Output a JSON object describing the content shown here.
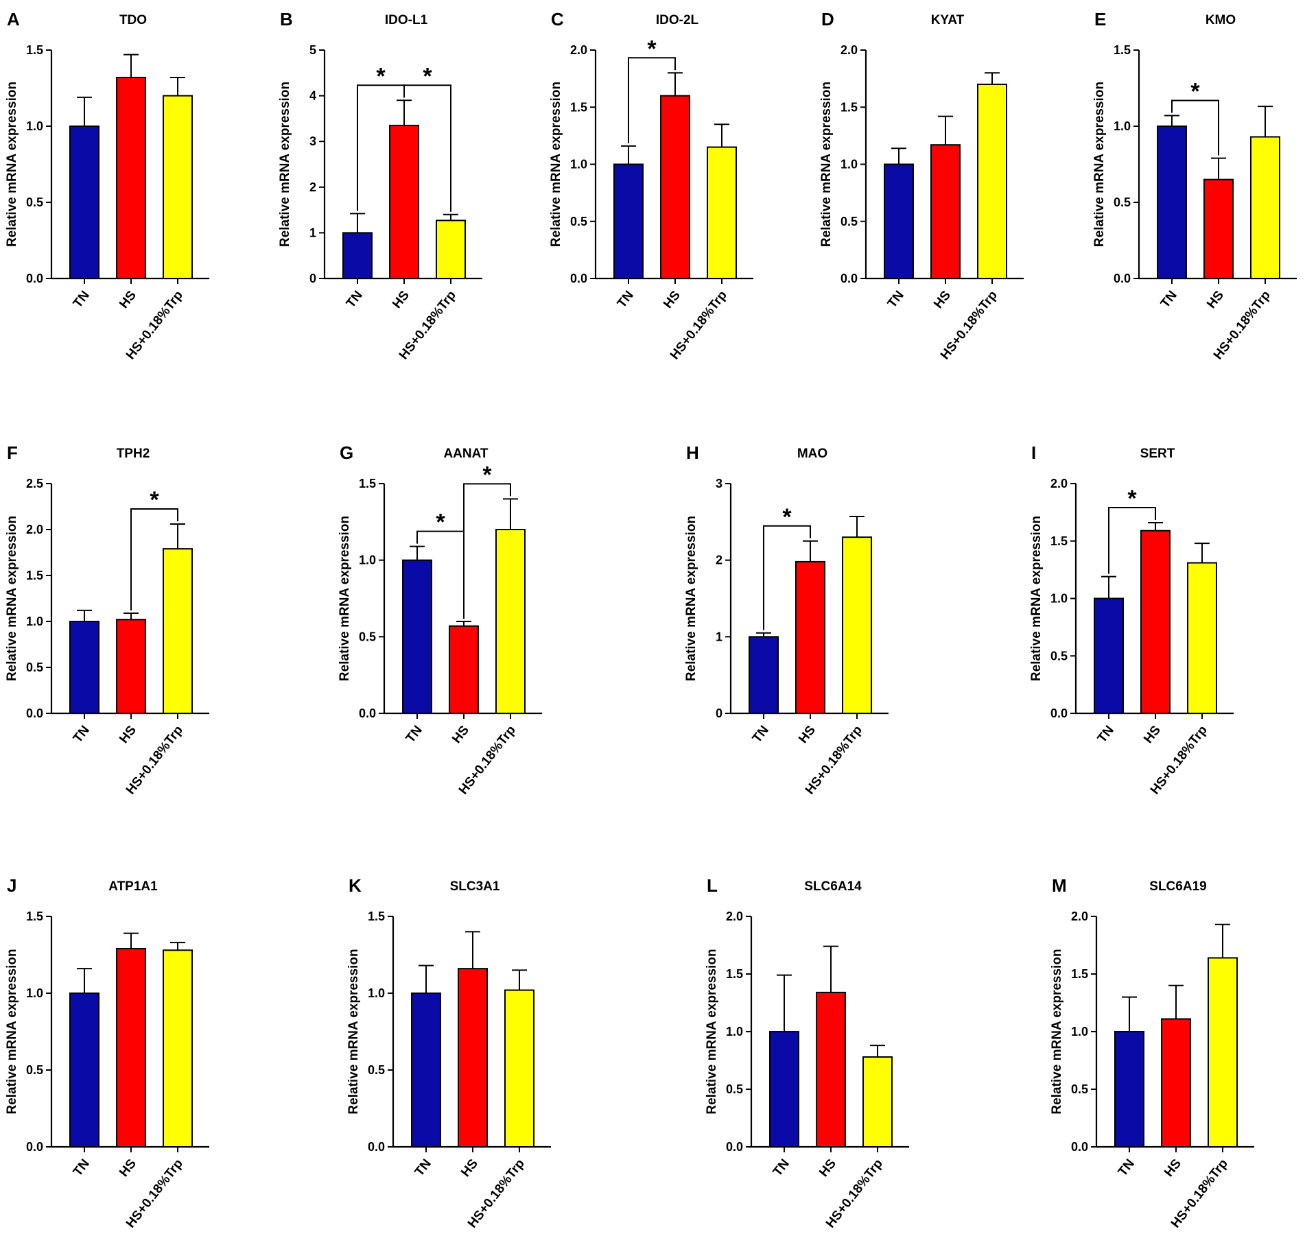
{
  "chart_data": [
    {
      "type": "bar",
      "panel": "A",
      "title": "TDO",
      "ylabel": "Relative mRNA expression",
      "categories": [
        "TN",
        "HS",
        "HS+0.18%Trp"
      ],
      "values": [
        1.0,
        1.32,
        1.2
      ],
      "errors": [
        0.19,
        0.15,
        0.12
      ],
      "colors": [
        "#0a0aa6",
        "#ff0000",
        "#ffff00"
      ],
      "ylim": [
        0,
        1.5
      ],
      "yticks": [
        "0.0",
        "0.5",
        "1.0",
        "1.5"
      ],
      "significance": []
    },
    {
      "type": "bar",
      "panel": "B",
      "title": "IDO-L1",
      "ylabel": "Relative mRNA expression",
      "categories": [
        "TN",
        "HS",
        "HS+0.18%Trp"
      ],
      "values": [
        1.0,
        3.35,
        1.27
      ],
      "errors": [
        0.42,
        0.55,
        0.13
      ],
      "colors": [
        "#0a0aa6",
        "#ff0000",
        "#ffff00"
      ],
      "ylim": [
        0,
        5
      ],
      "yticks": [
        "0",
        "1",
        "2",
        "3",
        "4",
        "5"
      ],
      "significance": [
        {
          "from": 0,
          "to": 1,
          "label": "*"
        },
        {
          "from": 1,
          "to": 2,
          "label": "*"
        }
      ]
    },
    {
      "type": "bar",
      "panel": "C",
      "title": "IDO-2L",
      "ylabel": "Relative mRNA expression",
      "categories": [
        "TN",
        "HS",
        "HS+0.18%Trp"
      ],
      "values": [
        1.0,
        1.6,
        1.15
      ],
      "errors": [
        0.16,
        0.2,
        0.2
      ],
      "colors": [
        "#0a0aa6",
        "#ff0000",
        "#ffff00"
      ],
      "ylim": [
        0,
        2.0
      ],
      "yticks": [
        "0.0",
        "0.5",
        "1.0",
        "1.5",
        "2.0"
      ],
      "significance": [
        {
          "from": 0,
          "to": 1,
          "label": "*"
        }
      ]
    },
    {
      "type": "bar",
      "panel": "D",
      "title": "KYAT",
      "ylabel": "Relative mRNA expression",
      "categories": [
        "TN",
        "HS",
        "HS+0.18%Trp"
      ],
      "values": [
        1.0,
        1.17,
        1.7
      ],
      "errors": [
        0.14,
        0.25,
        0.1
      ],
      "colors": [
        "#0a0aa6",
        "#ff0000",
        "#ffff00"
      ],
      "ylim": [
        0,
        2.0
      ],
      "yticks": [
        "0.0",
        "0.5",
        "1.0",
        "1.5",
        "2.0"
      ],
      "significance": []
    },
    {
      "type": "bar",
      "panel": "E",
      "title": "KMO",
      "ylabel": "Relative mRNA expression",
      "categories": [
        "TN",
        "HS",
        "HS+0.18%Trp"
      ],
      "values": [
        1.0,
        0.65,
        0.93
      ],
      "errors": [
        0.07,
        0.14,
        0.2
      ],
      "colors": [
        "#0a0aa6",
        "#ff0000",
        "#ffff00"
      ],
      "ylim": [
        0,
        1.5
      ],
      "yticks": [
        "0.0",
        "0.5",
        "1.0",
        "1.5"
      ],
      "significance": [
        {
          "from": 0,
          "to": 1,
          "label": "*"
        }
      ]
    },
    {
      "type": "bar",
      "panel": "F",
      "title": "TPH2",
      "ylabel": "Relative mRNA expression",
      "categories": [
        "TN",
        "HS",
        "HS+0.18%Trp"
      ],
      "values": [
        1.0,
        1.02,
        1.79
      ],
      "errors": [
        0.12,
        0.07,
        0.27
      ],
      "colors": [
        "#0a0aa6",
        "#ff0000",
        "#ffff00"
      ],
      "ylim": [
        0,
        2.5
      ],
      "yticks": [
        "0.0",
        "0.5",
        "1.0",
        "1.5",
        "2.0",
        "2.5"
      ],
      "significance": [
        {
          "from": 1,
          "to": 2,
          "label": "*"
        }
      ]
    },
    {
      "type": "bar",
      "panel": "G",
      "title": "AANAT",
      "ylabel": "Relative mRNA expression",
      "categories": [
        "TN",
        "HS",
        "HS+0.18%Trp"
      ],
      "values": [
        1.0,
        0.57,
        1.2
      ],
      "errors": [
        0.09,
        0.03,
        0.2
      ],
      "colors": [
        "#0a0aa6",
        "#ff0000",
        "#ffff00"
      ],
      "ylim": [
        0,
        1.5
      ],
      "yticks": [
        "0.0",
        "0.5",
        "1.0",
        "1.5"
      ],
      "significance": [
        {
          "from": 0,
          "to": 1,
          "label": "*"
        },
        {
          "from": 1,
          "to": 2,
          "label": "*"
        }
      ]
    },
    {
      "type": "bar",
      "panel": "H",
      "title": "MAO",
      "ylabel": "Relative mRNA expression",
      "categories": [
        "TN",
        "HS",
        "HS+0.18%Trp"
      ],
      "values": [
        1.0,
        1.98,
        2.3
      ],
      "errors": [
        0.05,
        0.27,
        0.27
      ],
      "colors": [
        "#0a0aa6",
        "#ff0000",
        "#ffff00"
      ],
      "ylim": [
        0,
        3
      ],
      "yticks": [
        "0",
        "1",
        "2",
        "3"
      ],
      "significance": [
        {
          "from": 0,
          "to": 1,
          "label": "*"
        }
      ]
    },
    {
      "type": "bar",
      "panel": "I",
      "title": "SERT",
      "ylabel": "Relative mRNA expression",
      "categories": [
        "TN",
        "HS",
        "HS+0.18%Trp"
      ],
      "values": [
        1.0,
        1.59,
        1.31
      ],
      "errors": [
        0.19,
        0.07,
        0.17
      ],
      "colors": [
        "#0a0aa6",
        "#ff0000",
        "#ffff00"
      ],
      "ylim": [
        0,
        2.0
      ],
      "yticks": [
        "0.0",
        "0.5",
        "1.0",
        "1.5",
        "2.0"
      ],
      "significance": [
        {
          "from": 0,
          "to": 1,
          "label": "*"
        }
      ]
    },
    {
      "type": "bar",
      "panel": "J",
      "title": "ATP1A1",
      "ylabel": "Relative mRNA expression",
      "categories": [
        "TN",
        "HS",
        "HS+0.18%Trp"
      ],
      "values": [
        1.0,
        1.29,
        1.28
      ],
      "errors": [
        0.16,
        0.1,
        0.05
      ],
      "colors": [
        "#0a0aa6",
        "#ff0000",
        "#ffff00"
      ],
      "ylim": [
        0,
        1.5
      ],
      "yticks": [
        "0.0",
        "0.5",
        "1.0",
        "1.5"
      ],
      "significance": []
    },
    {
      "type": "bar",
      "panel": "K",
      "title": "SLC3A1",
      "ylabel": "Relative mRNA expression",
      "categories": [
        "TN",
        "HS",
        "HS+0.18%Trp"
      ],
      "values": [
        1.0,
        1.16,
        1.02
      ],
      "errors": [
        0.18,
        0.24,
        0.13
      ],
      "colors": [
        "#0a0aa6",
        "#ff0000",
        "#ffff00"
      ],
      "ylim": [
        0,
        1.5
      ],
      "yticks": [
        "0.0",
        "0.5",
        "1.0",
        "1.5"
      ],
      "significance": []
    },
    {
      "type": "bar",
      "panel": "L",
      "title": "SLC6A14",
      "ylabel": "Relative mRNA expression",
      "categories": [
        "TN",
        "HS",
        "HS+0.18%Trp"
      ],
      "values": [
        1.0,
        1.34,
        0.78
      ],
      "errors": [
        0.49,
        0.4,
        0.1
      ],
      "colors": [
        "#0a0aa6",
        "#ff0000",
        "#ffff00"
      ],
      "ylim": [
        0,
        2.0
      ],
      "yticks": [
        "0.0",
        "0.5",
        "1.0",
        "1.5",
        "2.0"
      ],
      "significance": []
    },
    {
      "type": "bar",
      "panel": "M",
      "title": "SLC6A19",
      "ylabel": "Relative mRNA expression",
      "categories": [
        "TN",
        "HS",
        "HS+0.18%Trp"
      ],
      "values": [
        1.0,
        1.11,
        1.64
      ],
      "errors": [
        0.3,
        0.29,
        0.29
      ],
      "colors": [
        "#0a0aa6",
        "#ff0000",
        "#ffff00"
      ],
      "ylim": [
        0,
        2.0
      ],
      "yticks": [
        "0.0",
        "0.5",
        "1.0",
        "1.5",
        "2.0"
      ],
      "significance": []
    }
  ]
}
